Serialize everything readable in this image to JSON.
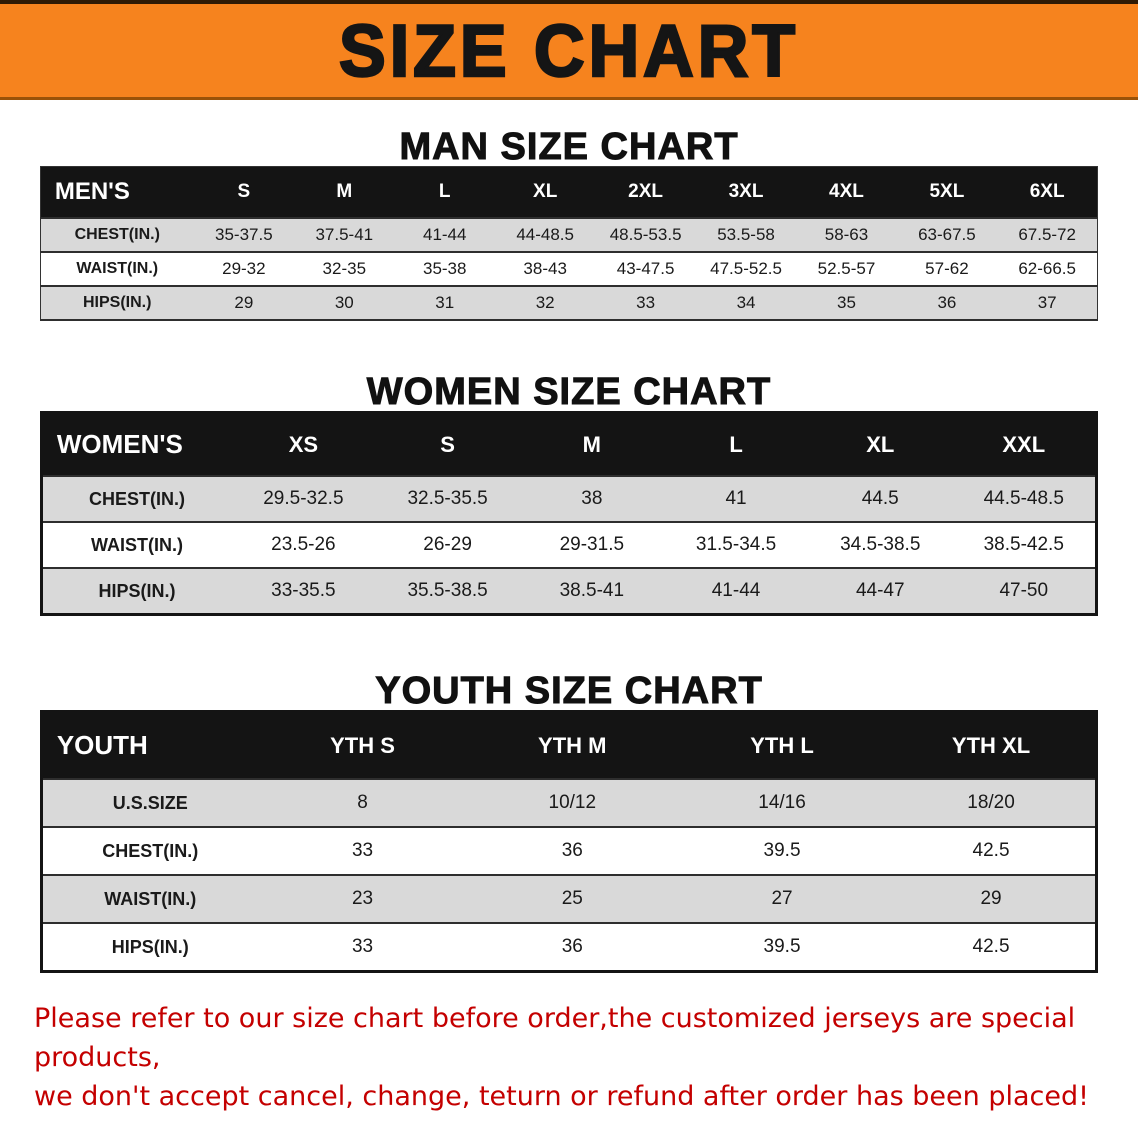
{
  "banner": {
    "title": "SIZE CHART",
    "bg_color": "#f6831e",
    "text_color": "#151515"
  },
  "sections": {
    "men": {
      "heading": "MAN SIZE CHART",
      "table": {
        "header": [
          "MEN'S",
          "S",
          "M",
          "L",
          "XL",
          "2XL",
          "3XL",
          "4XL",
          "5XL",
          "6XL"
        ],
        "rows": [
          [
            "CHEST(IN.)",
            "35-37.5",
            "37.5-41",
            "41-44",
            "44-48.5",
            "48.5-53.5",
            "53.5-58",
            "58-63",
            "63-67.5",
            "67.5-72"
          ],
          [
            "WAIST(IN.)",
            "29-32",
            "32-35",
            "35-38",
            "38-43",
            "43-47.5",
            "47.5-52.5",
            "52.5-57",
            "57-62",
            "62-66.5"
          ],
          [
            "HIPS(IN.)",
            "29",
            "30",
            "31",
            "32",
            "33",
            "34",
            "35",
            "36",
            "37"
          ]
        ]
      }
    },
    "women": {
      "heading": "WOMEN SIZE CHART",
      "table": {
        "header": [
          "WOMEN'S",
          "XS",
          "S",
          "M",
          "L",
          "XL",
          "XXL"
        ],
        "rows": [
          [
            "CHEST(IN.)",
            "29.5-32.5",
            "32.5-35.5",
            "38",
            "41",
            "44.5",
            "44.5-48.5"
          ],
          [
            "WAIST(IN.)",
            "23.5-26",
            "26-29",
            "29-31.5",
            "31.5-34.5",
            "34.5-38.5",
            "38.5-42.5"
          ],
          [
            "HIPS(IN.)",
            "33-35.5",
            "35.5-38.5",
            "38.5-41",
            "41-44",
            "44-47",
            "47-50"
          ]
        ]
      }
    },
    "youth": {
      "heading": "YOUTH SIZE CHART",
      "table": {
        "header": [
          "YOUTH",
          "YTH S",
          "YTH M",
          "YTH L",
          "YTH XL"
        ],
        "rows": [
          [
            "U.S.SIZE",
            "8",
            "10/12",
            "14/16",
            "18/20"
          ],
          [
            "CHEST(IN.)",
            "33",
            "36",
            "39.5",
            "42.5"
          ],
          [
            "WAIST(IN.)",
            "23",
            "25",
            "27",
            "29"
          ],
          [
            "HIPS(IN.)",
            "33",
            "36",
            "39.5",
            "42.5"
          ]
        ]
      }
    }
  },
  "disclaimer": {
    "text_color": "#c40000",
    "line1": "Please refer to our size chart before order,the customized jerseys are special products,",
    "line2": "we don't accept cancel, change, teturn or refund after order has been placed!"
  }
}
